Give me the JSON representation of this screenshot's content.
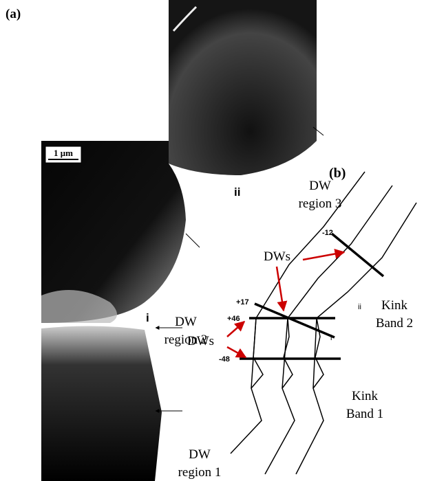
{
  "panel_a": {
    "label": "(a)",
    "scale_bar": "1 μm",
    "region_labels": [
      "ii",
      "i"
    ]
  },
  "panel_b": {
    "label": "(b)",
    "regions": [
      [
        "DW",
        "region 3"
      ],
      [
        "DW",
        "region 2"
      ],
      [
        "DW",
        "region 1"
      ]
    ],
    "boundaries": [
      "-12",
      "+17",
      "+46",
      "-48"
    ],
    "dw_labels": [
      "DWs",
      "DWs"
    ],
    "kink_bands": [
      [
        "Kink",
        "Band 2"
      ],
      [
        "Kink",
        "Band 1"
      ]
    ],
    "kink_markers": [
      "ii",
      "i"
    ]
  }
}
